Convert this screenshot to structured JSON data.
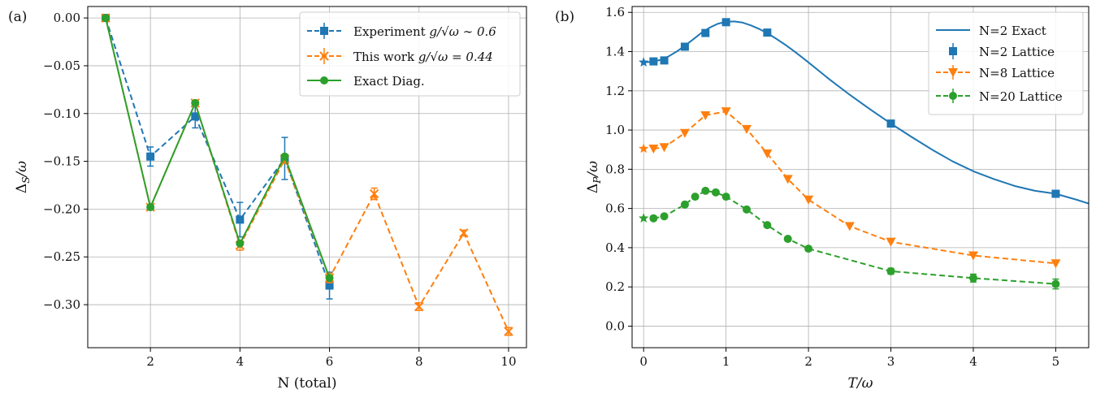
{
  "chart_data": [
    {
      "panel_label": "(a)",
      "type": "line",
      "xlabel": "N (total)",
      "ylabel": "ΔS/ω",
      "ylabel_parts": {
        "main": "Δ",
        "sub": "S",
        "rest": "/ω"
      },
      "xlim": [
        0.6,
        10.4
      ],
      "ylim": [
        -0.345,
        0.012
      ],
      "xticks": [
        2,
        4,
        6,
        8,
        10
      ],
      "yticks": [
        0.0,
        -0.05,
        -0.1,
        -0.15,
        -0.2,
        -0.25,
        -0.3
      ],
      "ytick_labels": [
        "0.00",
        "−0.05",
        "−0.10",
        "−0.15",
        "−0.20",
        "−0.25",
        "−0.30"
      ],
      "grid": true,
      "legend_position": "top-right",
      "series": [
        {
          "name": "Experiment g/√ω ∼ 0.6",
          "legend_parts": {
            "pre": "Experiment ",
            "math": "g/√ω ∼ 0.6"
          },
          "color": "#1f77b4",
          "marker": "square",
          "linestyle": "dashed",
          "x": [
            1,
            2,
            3,
            4,
            5,
            6
          ],
          "y": [
            0.0,
            -0.145,
            -0.103,
            -0.211,
            -0.147,
            -0.28
          ],
          "err": [
            0.0,
            0.01,
            0.012,
            0.018,
            0.022,
            0.014
          ]
        },
        {
          "name": "This work g/√ω = 0.44",
          "legend_parts": {
            "pre": "This work ",
            "math": "g/√ω = 0.44"
          },
          "color": "#ff7f0e",
          "marker": "x",
          "linestyle": "dashed",
          "x": [
            1,
            2,
            3,
            4,
            5,
            6,
            7,
            8,
            9,
            10
          ],
          "y": [
            0.0,
            -0.198,
            -0.089,
            -0.238,
            -0.148,
            -0.272,
            -0.184,
            -0.302,
            -0.225,
            -0.328
          ],
          "err": [
            0.001,
            0.002,
            0.003,
            0.005,
            0.004,
            0.005,
            0.006,
            0.004,
            0.003,
            0.004
          ]
        },
        {
          "name": "Exact Diag.",
          "legend_parts": {
            "pre": "Exact Diag.",
            "math": ""
          },
          "color": "#2ca02c",
          "marker": "circle",
          "linestyle": "solid",
          "x": [
            1,
            2,
            3,
            4,
            5,
            6
          ],
          "y": [
            0.0,
            -0.198,
            -0.089,
            -0.236,
            -0.145,
            -0.272
          ],
          "err": []
        }
      ]
    },
    {
      "panel_label": "(b)",
      "type": "line",
      "xlabel": "T/ω",
      "ylabel": "ΔP/ω",
      "ylabel_parts": {
        "main": "Δ",
        "sub": "P",
        "rest": "/ω"
      },
      "xlim": [
        -0.14,
        5.4
      ],
      "ylim": [
        -0.11,
        1.63
      ],
      "xticks": [
        0,
        1,
        2,
        3,
        4,
        5
      ],
      "yticks": [
        0.0,
        0.2,
        0.4,
        0.6,
        0.8,
        1.0,
        1.2,
        1.4,
        1.6
      ],
      "ytick_labels": [
        "0.0",
        "0.2",
        "0.4",
        "0.6",
        "0.8",
        "1.0",
        "1.2",
        "1.4",
        "1.6"
      ],
      "grid": true,
      "legend_position": "top-right",
      "series": [
        {
          "name": "N=2 Exact",
          "color": "#1f77b4",
          "marker": "none",
          "linestyle": "solid",
          "x": [
            0.0,
            0.1,
            0.2,
            0.3,
            0.4,
            0.5,
            0.6,
            0.7,
            0.8,
            0.9,
            1.0,
            1.1,
            1.2,
            1.3,
            1.4,
            1.5,
            1.6,
            1.7,
            1.8,
            1.9,
            2.0,
            2.25,
            2.5,
            2.75,
            3.0,
            3.25,
            3.5,
            3.75,
            4.0,
            4.25,
            4.5,
            4.75,
            5.0,
            5.25,
            5.4
          ],
          "y": [
            1.345,
            1.348,
            1.357,
            1.375,
            1.4,
            1.43,
            1.462,
            1.495,
            1.522,
            1.542,
            1.552,
            1.554,
            1.548,
            1.534,
            1.516,
            1.494,
            1.468,
            1.44,
            1.41,
            1.378,
            1.345,
            1.26,
            1.18,
            1.105,
            1.033,
            0.965,
            0.9,
            0.84,
            0.79,
            0.75,
            0.715,
            0.69,
            0.675,
            0.645,
            0.625
          ]
        },
        {
          "name": "N=2 Lattice",
          "color": "#1f77b4",
          "marker": "square",
          "linestyle": "none",
          "x": [
            0.12,
            0.25,
            0.5,
            0.75,
            1.0,
            1.5,
            3.0,
            5.0
          ],
          "y": [
            1.35,
            1.355,
            1.425,
            1.495,
            1.55,
            1.497,
            1.033,
            0.675
          ],
          "star": {
            "x": 0.0,
            "y": 1.345
          }
        },
        {
          "name": "N=8 Lattice",
          "color": "#ff7f0e",
          "marker": "triangle-down",
          "linestyle": "dashed",
          "x": [
            0.12,
            0.25,
            0.5,
            0.75,
            1.0,
            1.25,
            1.5,
            1.75,
            2.0,
            2.5,
            3.0,
            4.0,
            5.0
          ],
          "y": [
            0.905,
            0.912,
            0.985,
            1.075,
            1.095,
            1.005,
            0.88,
            0.75,
            0.645,
            0.51,
            0.43,
            0.36,
            0.32
          ],
          "star": {
            "x": 0.0,
            "y": 0.905
          }
        },
        {
          "name": "N=20 Lattice",
          "color": "#2ca02c",
          "marker": "circle",
          "linestyle": "dashed",
          "x": [
            0.12,
            0.25,
            0.5,
            0.625,
            0.75,
            0.875,
            1.0,
            1.25,
            1.5,
            1.75,
            2.0,
            3.0,
            4.0,
            5.0
          ],
          "y": [
            0.55,
            0.56,
            0.62,
            0.66,
            0.69,
            0.682,
            0.66,
            0.595,
            0.515,
            0.445,
            0.395,
            0.28,
            0.245,
            0.215
          ],
          "err": [
            0.01,
            0.01,
            0.01,
            0.01,
            0.01,
            0.01,
            0.01,
            0.01,
            0.01,
            0.01,
            0.01,
            0.015,
            0.02,
            0.025
          ],
          "star": {
            "x": 0.0,
            "y": 0.55
          }
        }
      ]
    }
  ]
}
